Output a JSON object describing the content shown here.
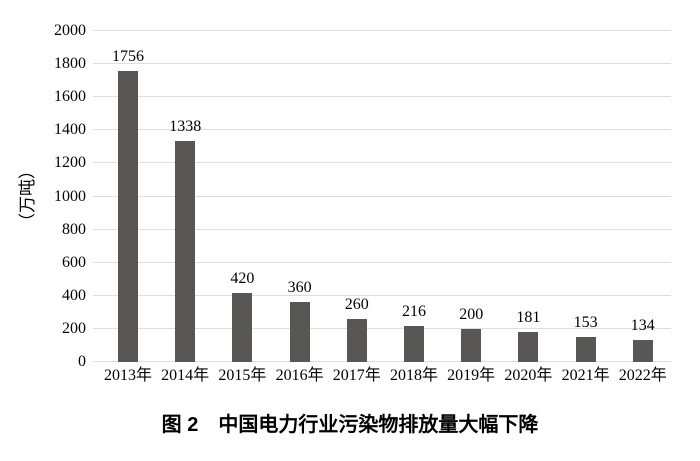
{
  "figure": {
    "caption": {
      "label": "图 2",
      "title": "中国电力行业污染物排放量大幅下降"
    }
  },
  "chart_data": {
    "type": "bar",
    "title": "图 2 中国电力行业污染物排放量大幅下降",
    "categories": [
      "2013年",
      "2014年",
      "2015年",
      "2016年",
      "2017年",
      "2018年",
      "2019年",
      "2020年",
      "2021年",
      "2022年"
    ],
    "values": [
      1756,
      1338,
      420,
      360,
      260,
      216,
      200,
      181,
      153,
      134
    ],
    "xlabel": "",
    "ylabel": "（万吨）",
    "ylim": [
      0,
      2000
    ],
    "ytick_step": 200,
    "grid": true,
    "legend_position": "none",
    "data_labels": true,
    "bar_color": "#595656",
    "gridline_color": "#dedede",
    "text_color": "#000000"
  }
}
